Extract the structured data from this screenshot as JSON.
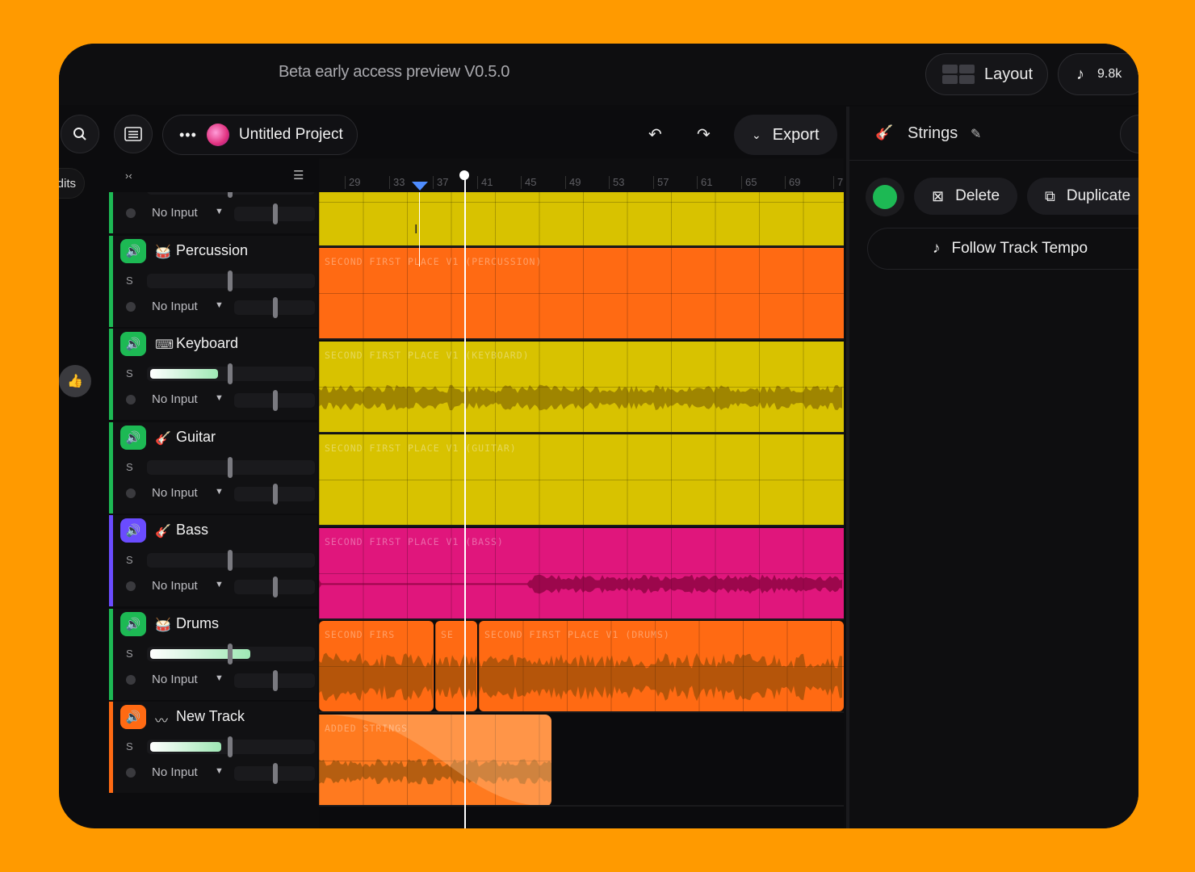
{
  "header": {
    "beta_label": "Beta early access preview V0.5.0",
    "layout_label": "Layout",
    "count_label": "9.8k"
  },
  "toolbar": {
    "project_name": "Untitled Project",
    "export_label": "Export"
  },
  "left_strip": {
    "edits_label": "dits"
  },
  "ruler": {
    "ticks": [
      "29",
      "33",
      "37",
      "41",
      "45",
      "49",
      "53",
      "57",
      "61",
      "65",
      "69",
      "7"
    ]
  },
  "tracks": [
    {
      "name": "Strings",
      "input": "No Input",
      "solo": "S",
      "accent": "#1db954",
      "volume": 0.0
    },
    {
      "name": "Percussion",
      "input": "No Input",
      "solo": "S",
      "accent": "#1db954",
      "volume": 0.0
    },
    {
      "name": "Keyboard",
      "input": "No Input",
      "solo": "S",
      "accent": "#1db954",
      "volume": 0.42
    },
    {
      "name": "Guitar",
      "input": "No Input",
      "solo": "S",
      "accent": "#1db954",
      "volume": 0.0
    },
    {
      "name": "Bass",
      "input": "No Input",
      "solo": "S",
      "accent": "#6a4cff",
      "volume": 0.0
    },
    {
      "name": "Drums",
      "input": "No Input",
      "solo": "S",
      "accent": "#1db954",
      "volume": 0.62
    },
    {
      "name": "New Track",
      "input": "No Input",
      "solo": "S",
      "accent": "#ff6a13",
      "volume": 0.44
    }
  ],
  "clips": [
    {
      "label": "",
      "color": "#d8c200"
    },
    {
      "label": "SECOND FIRST PLACE V1 (PERCUSSION)",
      "color": "#ff6a13"
    },
    {
      "label": "SECOND FIRST PLACE V1 (KEYBOARD)",
      "color": "#d8c200"
    },
    {
      "label": "SECOND FIRST PLACE V1 (GUITAR)",
      "color": "#d8c200"
    },
    {
      "label": "SECOND FIRST PLACE V1 (BASS)",
      "color": "#e0167c"
    },
    {
      "label": "SECOND FIRS",
      "color": "#ff6a13"
    },
    {
      "label": "SE",
      "color": "#ff6a13"
    },
    {
      "label": "SECOND FIRST PLACE V1 (DRUMS)",
      "color": "#ff6a13"
    },
    {
      "label": "ADDED STRINGS",
      "color": "#ff7a1f"
    }
  ],
  "right_panel": {
    "track_name": "Strings",
    "delete_label": "Delete",
    "duplicate_label": "Duplicate",
    "follow_label": "Follow Track Tempo",
    "track_color": "#1db954"
  }
}
